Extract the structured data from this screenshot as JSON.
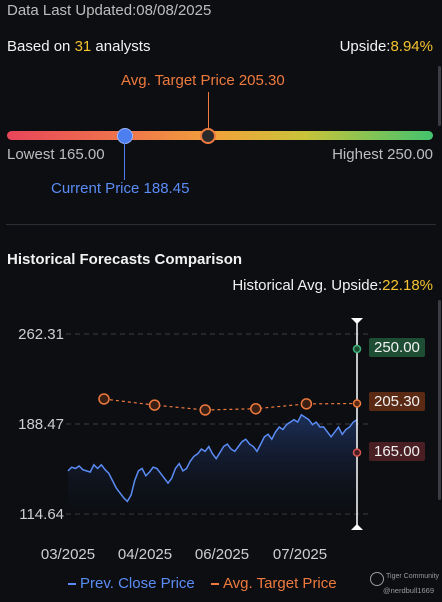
{
  "header": {
    "last_updated": "Data Last Updated:08/08/2025",
    "based_on_prefix": "Based on ",
    "analyst_count": "31",
    "based_on_suffix": " analysts",
    "upside_label": "Upside:",
    "upside_value": "8.94%"
  },
  "range": {
    "avg_target_label": "Avg. Target Price 205.30",
    "lowest_label": "Lowest 165.00",
    "highest_label": "Highest 250.00",
    "current_label": "Current Price 188.45",
    "lowest": 165.0,
    "highest": 250.0,
    "current": 188.45,
    "avg_target": 205.3
  },
  "historical": {
    "title": "Historical Forecasts Comparison",
    "avg_upside_label": "Historical Avg. Upside:",
    "avg_upside_value": "22.18%"
  },
  "chart_data": {
    "type": "line",
    "y_ticks": [
      "262.31",
      "188.47",
      "114.64"
    ],
    "x_ticks": [
      "03/2025",
      "04/2025",
      "06/2025",
      "07/2025"
    ],
    "ylim": [
      114.64,
      262.31
    ],
    "series": [
      {
        "name": "Prev. Close Price",
        "color": "#5b8cf5",
        "values": [
          150,
          153,
          152,
          154,
          151,
          150,
          149,
          155,
          152,
          155,
          151,
          148,
          142,
          136,
          132,
          128,
          125,
          130,
          142,
          150,
          152,
          146,
          149,
          153,
          152,
          148,
          144,
          140,
          144,
          152,
          156,
          150,
          152,
          158,
          162,
          164,
          168,
          166,
          170,
          164,
          160,
          165,
          170,
          172,
          168,
          166,
          170,
          174,
          176,
          172,
          170,
          166,
          172,
          178,
          180,
          176,
          182,
          186,
          184,
          188,
          190,
          192,
          190,
          196,
          194,
          192,
          188,
          190,
          186,
          186,
          182,
          178,
          182,
          186,
          180,
          184,
          186,
          190,
          192
        ]
      },
      {
        "name": "Avg. Target Price",
        "color": "#ef7a3e",
        "values": [
          209,
          204,
          200,
          201,
          205,
          205.3
        ]
      }
    ],
    "end_labels": [
      {
        "text": "250.00",
        "value": 250.0,
        "bg": "#1d4d33",
        "dot": "#3fb37a"
      },
      {
        "text": "205.30",
        "value": 205.3,
        "bg": "#5a2a14",
        "dot": "#ef7a3e"
      },
      {
        "text": "165.00",
        "value": 165.0,
        "bg": "#4a1f23",
        "dot": "#d9534f"
      }
    ]
  },
  "legend": {
    "close": "Prev. Close Price",
    "target": "Avg. Target Price"
  },
  "watermark": {
    "brand": "Tiger Community",
    "user": "@nerdbull1669"
  }
}
